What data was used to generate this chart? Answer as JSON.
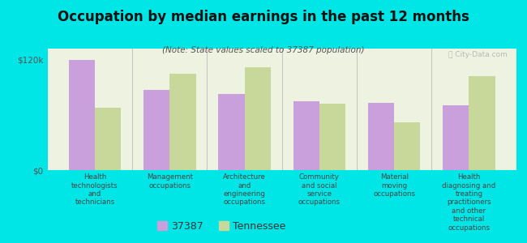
{
  "title": "Occupation by median earnings in the past 12 months",
  "subtitle": "(Note: State values scaled to 37387 population)",
  "background_outer": "#00e5e5",
  "background_plot": "#eef2e0",
  "categories": [
    "Health\ntechnologists\nand\ntechnicians",
    "Management\noccupations",
    "Architecture\nand\nengineering\noccupations",
    "Community\nand social\nservice\noccupations",
    "Material\nmoving\noccupations",
    "Health\ndiagnosing and\ntreating\npractitioners\nand other\ntechnical\noccupations"
  ],
  "values_37387": [
    120000,
    87000,
    83000,
    75000,
    73000,
    70000
  ],
  "values_tennessee": [
    68000,
    105000,
    112000,
    72000,
    52000,
    102000
  ],
  "color_37387": "#c9a0dc",
  "color_tennessee": "#c8d89a",
  "ylim": [
    0,
    132000
  ],
  "yticks": [
    0,
    120000
  ],
  "ytick_labels": [
    "$0",
    "$120k"
  ],
  "legend_37387": "37387",
  "legend_tennessee": "Tennessee",
  "bar_width": 0.35,
  "watermark": "Ⓡ City-Data.com"
}
